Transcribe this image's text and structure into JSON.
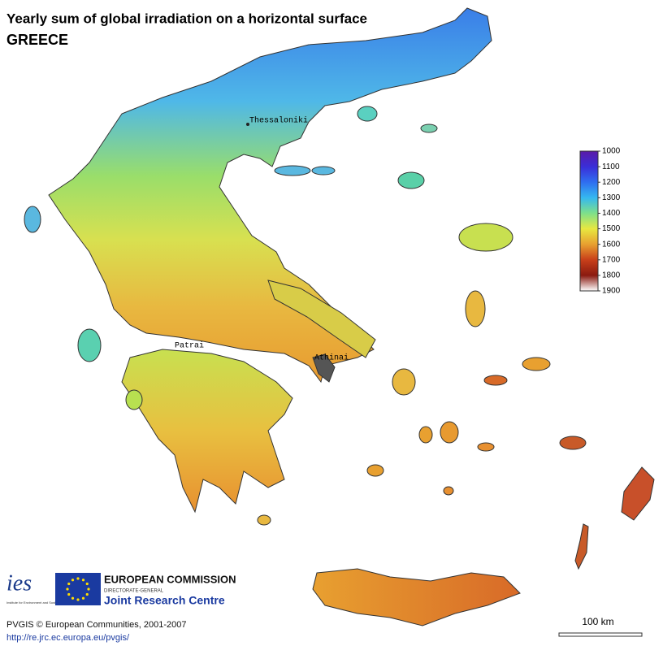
{
  "header": {
    "title": "Yearly sum of global irradiation on a horizontal surface",
    "subtitle": "GREECE"
  },
  "map": {
    "cities": [
      "Thessaloniki",
      "Patrai",
      "Athinai"
    ]
  },
  "legend": {
    "ticks": [
      1000,
      1100,
      1200,
      1300,
      1400,
      1500,
      1600,
      1700,
      1800,
      1900
    ],
    "colors": [
      "#5a1aa8",
      "#3a2ed8",
      "#2f6ef0",
      "#35b8f0",
      "#7ee08a",
      "#e8e840",
      "#e8a030",
      "#c8401a",
      "#8a1a10",
      "#ffffff"
    ]
  },
  "scale_bar": "100 km",
  "logos": {
    "ies": "ies",
    "ies_caption": "Institute for Environment and Sustainability",
    "ec": "EUROPEAN COMMISSION",
    "dg": "DIRECTORATE-GENERAL",
    "jrc": "Joint Research Centre"
  },
  "footer": {
    "credit": "PVGIS © European Communities, 2001-2007",
    "url": "http://re.jrc.ec.europa.eu/pvgis/"
  }
}
